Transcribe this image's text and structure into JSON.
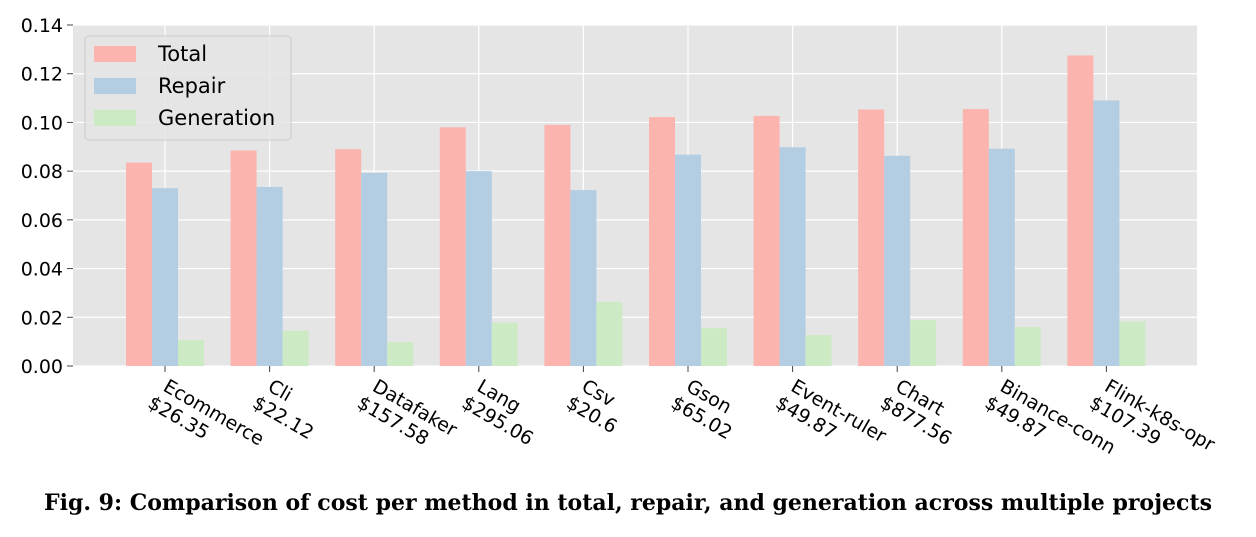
{
  "caption": "Fig. 9: Comparison of cost per method in total, repair, and generation across multiple projects",
  "colors": {
    "plot_background": "#e5e5e5",
    "grid": "#ffffff",
    "total": "#fbb4ae",
    "repair": "#b3cde3",
    "generation": "#ccebc5"
  },
  "chart_data": {
    "type": "bar",
    "categories": [
      [
        "Ecommerce",
        "$26.35"
      ],
      [
        "Cli",
        "$22.12"
      ],
      [
        "Datafaker",
        "$157.58"
      ],
      [
        "Lang",
        "$295.06"
      ],
      [
        "Csv",
        "$20.6"
      ],
      [
        "Gson",
        "$65.02"
      ],
      [
        "Event-ruler",
        "$49.87"
      ],
      [
        "Chart",
        "$877.56"
      ],
      [
        "Binance-conn",
        "$49.87"
      ],
      [
        "Flink-k8s-opr",
        "$107.39"
      ]
    ],
    "series": [
      {
        "name": "Total",
        "values": [
          0.0835,
          0.0885,
          0.089,
          0.098,
          0.099,
          0.1022,
          0.1027,
          0.1053,
          0.1055,
          0.1275
        ]
      },
      {
        "name": "Repair",
        "values": [
          0.073,
          0.0735,
          0.0793,
          0.08,
          0.0722,
          0.0868,
          0.0898,
          0.0863,
          0.0892,
          0.109
        ]
      },
      {
        "name": "Generation",
        "values": [
          0.0107,
          0.0145,
          0.0098,
          0.0178,
          0.0263,
          0.0155,
          0.0127,
          0.0188,
          0.016,
          0.0183
        ]
      }
    ],
    "ylim": [
      0,
      0.14
    ],
    "yticks": [
      "0.00",
      "0.02",
      "0.04",
      "0.06",
      "0.08",
      "0.10",
      "0.12",
      "0.14"
    ],
    "grid": true,
    "legend_position": "upper-left"
  }
}
